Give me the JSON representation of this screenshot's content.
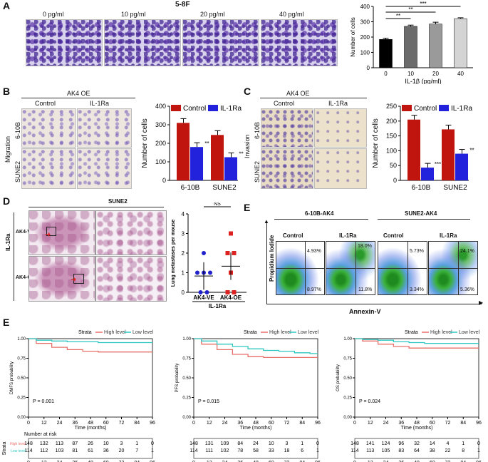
{
  "panelA": {
    "label": "A",
    "title": "5-8F",
    "images": [
      "0 pg/ml",
      "10 pg/ml",
      "20 pg/ml",
      "40 pg/ml"
    ],
    "sig": [
      "**",
      "**",
      "***"
    ]
  },
  "panelB": {
    "label": "B",
    "header": "AK4 OE",
    "cols": [
      "Control",
      "IL-1Ra"
    ],
    "side": "Migration",
    "rows": [
      "6-10B",
      "SUNE2"
    ],
    "sig": [
      "**",
      "**"
    ]
  },
  "panelC": {
    "label": "C",
    "header": "AK4 OE",
    "cols": [
      "Control",
      "IL-1Ra"
    ],
    "side": "Invasion",
    "rows": [
      "6-10B",
      "SUNE2"
    ],
    "sig": [
      "***",
      "**"
    ]
  },
  "panelD": {
    "label": "D",
    "header": "SUNE2",
    "side": "IL-1Ra",
    "rows": [
      "AK4-VE",
      "AK4-OE"
    ],
    "ns": "NS"
  },
  "panelE1": {
    "label": "E",
    "groups": [
      "6-10B-AK4",
      "SUNE2-AK4"
    ],
    "cols": [
      "Control",
      "IL-1Ra",
      "Control",
      "IL-1Ra"
    ],
    "ylabel": "Propidium Iodide",
    "xlabel": "Annexin-V",
    "top_pct": [
      "4.93%",
      "18.0%",
      "5.73%",
      "24.1%"
    ],
    "bot_pct": [
      "8.97%",
      "11.8%",
      "3.34%",
      "5.36%"
    ]
  },
  "panelE2": {
    "label": "E",
    "strata_label": "Strata",
    "legend_high": "High level",
    "legend_low": "Low level",
    "time_label": "Time (months)",
    "risk_title": "Number at risk",
    "risk_row_high": "High level",
    "risk_row_low": "Low level",
    "risk_strata": "Strata",
    "plots": [
      {
        "ylabel": "DMFS probability",
        "p": "P = 0.001",
        "risk_high": [
          148,
          132,
          113,
          87,
          26,
          10,
          3,
          1,
          0
        ],
        "risk_low": [
          114,
          112,
          103,
          81,
          61,
          36,
          20,
          7,
          1
        ]
      },
      {
        "ylabel": "PFS probability",
        "p": "P = 0.015",
        "risk_high": [
          148,
          131,
          109,
          84,
          24,
          10,
          3,
          1,
          0
        ],
        "risk_low": [
          114,
          111,
          102,
          78,
          58,
          33,
          18,
          6,
          1
        ]
      },
      {
        "ylabel": "OS probability",
        "p": "P = 0.024",
        "risk_high": [
          148,
          141,
          124,
          96,
          32,
          14,
          4,
          1,
          0
        ],
        "risk_low": [
          114,
          113,
          105,
          83,
          64,
          38,
          22,
          8,
          1
        ]
      }
    ]
  },
  "colors": {
    "red": "#c0150f",
    "blue": "#2222dd",
    "km_high": "#e8706a",
    "km_low": "#2cc7c0",
    "sig_red": "#dd2222",
    "sig_blue": "#2222cc"
  },
  "chart_data": [
    {
      "type": "bar",
      "title": "",
      "xlabel": "IL-1β (pg/ml)",
      "ylabel": "Number of cells",
      "categories": [
        "0",
        "10",
        "20",
        "40"
      ],
      "values": [
        185,
        270,
        285,
        320
      ],
      "errors": [
        8,
        8,
        12,
        6
      ],
      "ylim": [
        0,
        400
      ],
      "yticks": [
        "0",
        "100",
        "200",
        "300",
        "400"
      ],
      "colors": [
        "#000000",
        "#6b6b6b",
        "#9a9a9a",
        "#d4d4d4"
      ]
    },
    {
      "type": "bar",
      "title": "",
      "xlabel": "",
      "ylabel": "Number of cells",
      "categories": [
        "6-10B",
        "SUNE2"
      ],
      "legend": [
        "Control",
        "IL-1Ra"
      ],
      "series": [
        {
          "name": "Control",
          "values": [
            310,
            245
          ]
        },
        {
          "name": "IL-1Ra",
          "values": [
            180,
            125
          ]
        }
      ],
      "ylim": [
        0,
        400
      ],
      "yticks": [
        "0",
        "100",
        "200",
        "300",
        "400"
      ]
    },
    {
      "type": "bar",
      "title": "",
      "xlabel": "",
      "ylabel": "Number of cells",
      "categories": [
        "6-10B",
        "SUNE2"
      ],
      "legend": [
        "Control",
        "IL-1Ra"
      ],
      "series": [
        {
          "name": "Control",
          "values": [
            205,
            172
          ]
        },
        {
          "name": "IL-1Ra",
          "values": [
            43,
            90
          ]
        }
      ],
      "ylim": [
        0,
        250
      ],
      "yticks": [
        "0",
        "50",
        "100",
        "150",
        "200",
        "250"
      ]
    },
    {
      "type": "scatter",
      "title": "",
      "xlabel": "IL-1Ra",
      "ylabel": "Lung metastases per mouse",
      "categories": [
        "AK4-VE",
        "AK4-OE"
      ],
      "ylim": [
        0,
        4
      ],
      "yticks": [
        "0",
        "1",
        "2",
        "3",
        "4"
      ],
      "series": [
        {
          "name": "AK4-VE",
          "values": [
            2,
            1,
            1,
            1,
            0,
            0
          ]
        },
        {
          "name": "AK4-OE",
          "values": [
            3,
            2,
            2,
            1,
            0,
            0
          ]
        }
      ]
    },
    {
      "type": "line",
      "title": "",
      "xlabel": "Time (months)",
      "ylabel": "DMFS probability",
      "x": [
        0,
        12,
        24,
        36,
        48,
        60,
        72,
        84,
        96
      ],
      "xticks": [
        "0",
        "12",
        "24",
        "36",
        "48",
        "60",
        "72",
        "84",
        "96"
      ],
      "yticks": [
        "0.00",
        "0.25",
        "0.50",
        "0.75",
        "1.00"
      ],
      "ylim": [
        0,
        1
      ],
      "series": [
        {
          "name": "High level",
          "values": [
            1.0,
            0.94,
            0.89,
            0.86,
            0.84,
            0.83,
            0.83,
            0.83,
            0.83
          ]
        },
        {
          "name": "Low level",
          "values": [
            1.0,
            0.98,
            0.97,
            0.96,
            0.96,
            0.95,
            0.95,
            0.95,
            0.95
          ]
        }
      ]
    },
    {
      "type": "line",
      "title": "",
      "xlabel": "Time (months)",
      "ylabel": "PFS probability",
      "x": [
        0,
        12,
        24,
        36,
        48,
        60,
        72,
        84,
        96
      ],
      "xticks": [
        "0",
        "12",
        "24",
        "36",
        "48",
        "60",
        "72",
        "84",
        "96"
      ],
      "yticks": [
        "0.00",
        "0.25",
        "0.50",
        "0.75",
        "1.00"
      ],
      "ylim": [
        0,
        1
      ],
      "series": [
        {
          "name": "High level",
          "values": [
            1.0,
            0.93,
            0.86,
            0.8,
            0.77,
            0.76,
            0.76,
            0.76,
            0.76
          ]
        },
        {
          "name": "Low level",
          "values": [
            1.0,
            0.97,
            0.93,
            0.9,
            0.87,
            0.85,
            0.84,
            0.82,
            0.81
          ]
        }
      ]
    },
    {
      "type": "line",
      "title": "",
      "xlabel": "Time (months)",
      "ylabel": "OS probability",
      "x": [
        0,
        12,
        24,
        36,
        48,
        60,
        72,
        84,
        96
      ],
      "xticks": [
        "0",
        "12",
        "24",
        "36",
        "48",
        "60",
        "72",
        "84",
        "96"
      ],
      "yticks": [
        "0.00",
        "0.25",
        "0.50",
        "0.75",
        "1.00"
      ],
      "ylim": [
        0,
        1
      ],
      "series": [
        {
          "name": "High level",
          "values": [
            1.0,
            0.97,
            0.93,
            0.9,
            0.88,
            0.88,
            0.88,
            0.88,
            0.88
          ]
        },
        {
          "name": "Low level",
          "values": [
            1.0,
            0.99,
            0.98,
            0.96,
            0.95,
            0.94,
            0.94,
            0.94,
            0.94
          ]
        }
      ]
    }
  ]
}
